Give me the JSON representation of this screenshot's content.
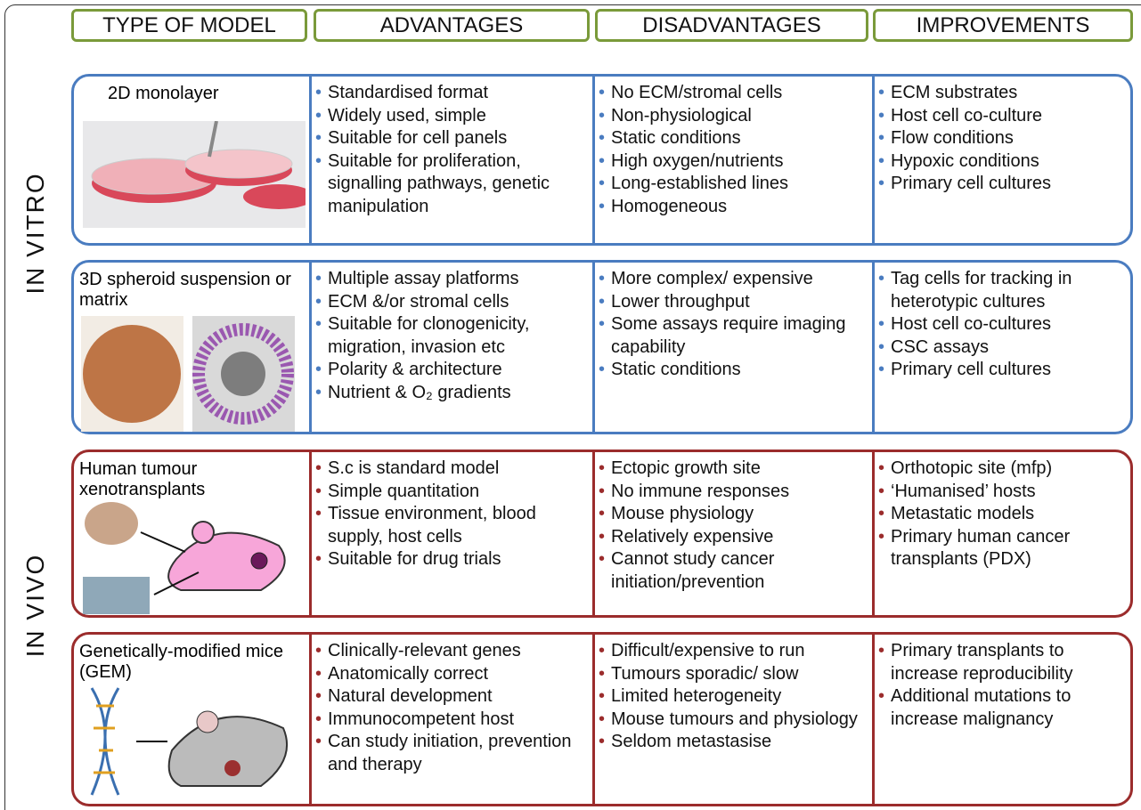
{
  "headers": [
    "TYPE OF MODEL",
    "ADVANTAGES",
    "DISADVANTAGES",
    "IMPROVEMENTS"
  ],
  "groups": [
    {
      "label": "IN VITRO",
      "color": "#4a7cc0",
      "rows": [
        {
          "model": "2D monolayer",
          "advantages": [
            "Standardised format",
            "Widely used, simple",
            "Suitable for cell panels",
            "Suitable for proliferation, signalling pathways, genetic manipulation"
          ],
          "disadvantages": [
            "No ECM/stromal cells",
            "Non-physiological",
            "Static conditions",
            "High oxygen/nutrients",
            "Long-established lines",
            "Homogeneous"
          ],
          "improvements": [
            "ECM substrates",
            "Host cell co-culture",
            "Flow conditions",
            "Hypoxic conditions",
            "Primary cell cultures"
          ]
        },
        {
          "model": "3D spheroid suspension or matrix",
          "advantages": [
            "Multiple assay platforms",
            "ECM &/or stromal cells",
            "Suitable for clonogenicity, migration, invasion etc",
            "Polarity & architecture",
            "Nutrient & O₂ gradients"
          ],
          "disadvantages": [
            "More complex/ expensive",
            "Lower throughput",
            "Some assays require imaging capability",
            "Static conditions"
          ],
          "improvements": [
            "Tag cells for tracking in heterotypic cultures",
            "Host cell co-cultures",
            "CSC assays",
            "Primary cell cultures"
          ]
        }
      ]
    },
    {
      "label": "IN VIVO",
      "color": "#9b2c2c",
      "rows": [
        {
          "model": "Human tumour xenotransplants",
          "advantages": [
            "S.c  is standard model",
            "Simple quantitation",
            "Tissue environment, blood supply, host cells",
            "Suitable for drug trials"
          ],
          "disadvantages": [
            "Ectopic growth site",
            "No immune responses",
            "Mouse physiology",
            "Relatively expensive",
            "Cannot study cancer initiation/prevention"
          ],
          "improvements": [
            "Orthotopic site (mfp)",
            "‘Humanised’ hosts",
            "Metastatic models",
            "Primary human cancer transplants (PDX)"
          ]
        },
        {
          "model": "Genetically-modified mice (GEM)",
          "advantages": [
            "Clinically-relevant genes",
            "Anatomically correct",
            "Natural development",
            "Immunocompetent host",
            "Can study initiation, prevention and therapy"
          ],
          "disadvantages": [
            "Difficult/expensive to run",
            "Tumours sporadic/ slow",
            "Limited heterogeneity",
            "Mouse  tumours and physiology",
            "Seldom metastasise"
          ],
          "improvements": [
            "Primary transplants to increase reproducibility",
            " Additional mutations to increase malignancy"
          ]
        }
      ]
    }
  ]
}
